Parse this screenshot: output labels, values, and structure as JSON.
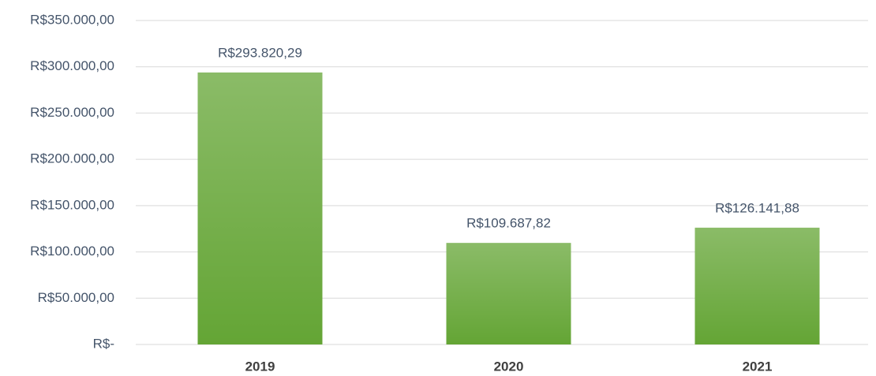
{
  "chart_data": {
    "type": "bar",
    "categories": [
      "2019",
      "2020",
      "2021"
    ],
    "values": [
      293820.29,
      109687.82,
      126141.88
    ],
    "value_labels": [
      "R$293.820,29",
      "R$109.687,82",
      "R$126.141,88"
    ],
    "color": "#64a535",
    "ylim": [
      0,
      350000
    ],
    "yticks": [
      {
        "value": 0,
        "label": "R$-"
      },
      {
        "value": 50000,
        "label": "R$50.000,00"
      },
      {
        "value": 100000,
        "label": "R$100.000,00"
      },
      {
        "value": 150000,
        "label": "R$150.000,00"
      },
      {
        "value": 200000,
        "label": "R$200.000,00"
      },
      {
        "value": 250000,
        "label": "R$250.000,00"
      },
      {
        "value": 300000,
        "label": "R$300.000,00"
      },
      {
        "value": 350000,
        "label": "R$350.000,00"
      }
    ],
    "grid": true
  }
}
